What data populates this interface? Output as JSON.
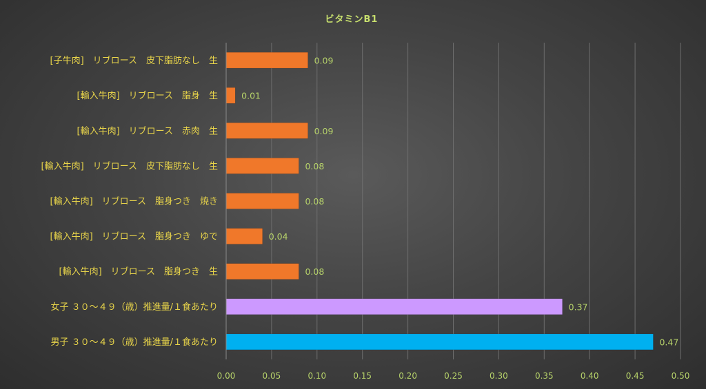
{
  "chart_data": {
    "type": "bar",
    "orientation": "horizontal",
    "title": "ビタミンB1",
    "categories": [
      "[子牛肉]　リブロース　皮下脂肪なし　生",
      "[輸入牛肉]　リブロース　脂身　生",
      "[輸入牛肉]　リブロース　赤肉　生",
      "[輸入牛肉]　リブロース　皮下脂肪なし　生",
      "[輸入牛肉]　リブロース　脂身つき　焼き",
      "[輸入牛肉]　リブロース　脂身つき　ゆで",
      "[輸入牛肉]　リブロース　脂身つき　生",
      "女子 ３０～４９（歳）推進量/１食あたり",
      "男子 ３０～４９（歳）推進量/１食あたり"
    ],
    "values": [
      0.09,
      0.01,
      0.09,
      0.08,
      0.08,
      0.04,
      0.08,
      0.37,
      0.47
    ],
    "data_labels": [
      "0.09",
      "0.01",
      "0.09",
      "0.08",
      "0.08",
      "0.04",
      "0.08",
      "0.37",
      "0.47"
    ],
    "bar_colors": [
      "#f0782a",
      "#f0782a",
      "#f0782a",
      "#f0782a",
      "#f0782a",
      "#f0782a",
      "#f0782a",
      "#cc99ff",
      "#00b0f0"
    ],
    "xlim": [
      0,
      0.5
    ],
    "x_ticks": [
      0.0,
      0.05,
      0.1,
      0.15,
      0.2,
      0.25,
      0.3,
      0.35,
      0.4,
      0.45,
      0.5
    ],
    "x_tick_labels": [
      "0.00",
      "0.05",
      "0.10",
      "0.15",
      "0.20",
      "0.25",
      "0.30",
      "0.35",
      "0.40",
      "0.45",
      "0.50"
    ],
    "xlabel": "",
    "ylabel": "",
    "grid": "vertical",
    "legend": "none"
  }
}
